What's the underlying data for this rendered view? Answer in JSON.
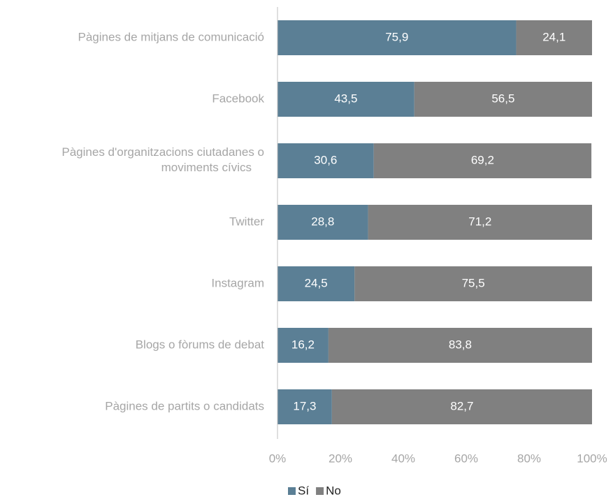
{
  "chart_data": {
    "type": "stacked-barh",
    "categories": [
      "Pàgines de mitjans de comunicació",
      "Facebook",
      "Pàgines d'organitzacions ciutadanes o moviments cívics",
      "Twitter",
      "Instagram",
      "Blogs o fòrums de debat",
      "Pàgines de partits o candidats"
    ],
    "series": [
      {
        "name": "Sí",
        "color": "#5b7f95",
        "values": [
          75.9,
          43.5,
          30.6,
          28.8,
          24.5,
          16.2,
          17.3
        ],
        "value_labels": [
          "75,9",
          "43,5",
          "30,6",
          "28,8",
          "24,5",
          "16,2",
          "17,3"
        ]
      },
      {
        "name": "No",
        "color": "#808080",
        "values": [
          24.1,
          56.5,
          69.2,
          71.2,
          75.5,
          83.8,
          82.7
        ],
        "value_labels": [
          "24,1",
          "56,5",
          "69,2",
          "71,2",
          "75,5",
          "83,8",
          "82,7"
        ]
      }
    ],
    "xlim": [
      0,
      100
    ],
    "xticks": [
      {
        "value": 0,
        "label": "0%"
      },
      {
        "value": 20,
        "label": "20%"
      },
      {
        "value": 40,
        "label": "40%"
      },
      {
        "value": 60,
        "label": "60%"
      },
      {
        "value": 80,
        "label": "80%"
      },
      {
        "value": 100,
        "label": "100%"
      }
    ],
    "legend": "bottom"
  }
}
